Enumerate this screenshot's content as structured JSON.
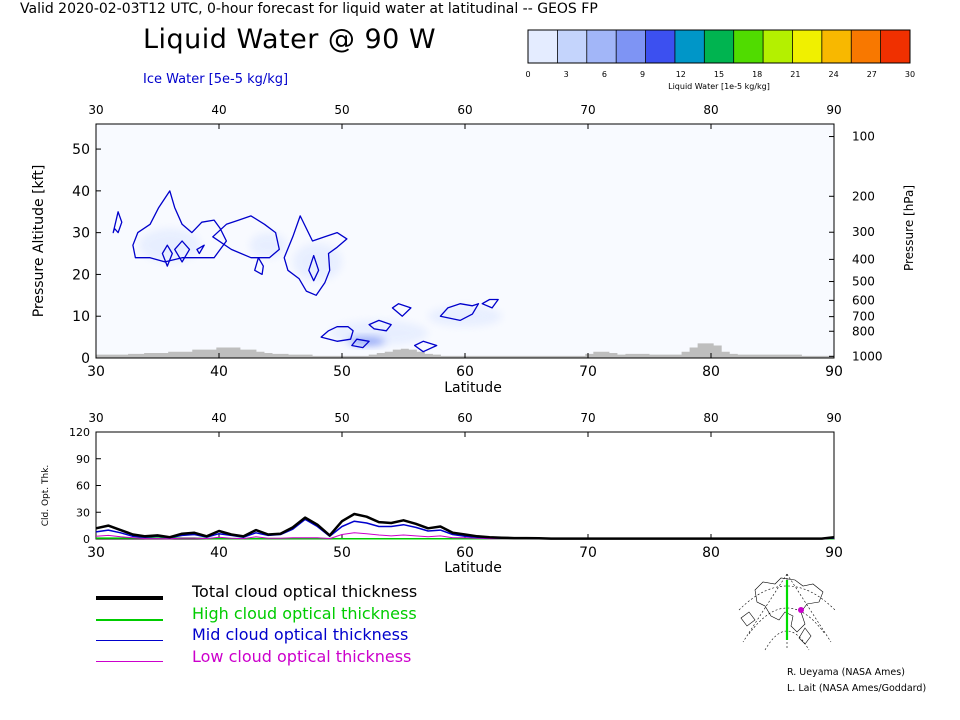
{
  "header": "Valid 2020-02-03T12 UTC, 0-hour forecast for liquid water at latitudinal -- GEOS FP",
  "title": "Liquid Water @ 90 W",
  "subtitle": "Ice Water [5e-5 kg/kg]",
  "colorbar": {
    "label": "Liquid Water [1e-5 kg/kg]",
    "ticks": [
      "0",
      "3",
      "6",
      "9",
      "12",
      "15",
      "18",
      "21",
      "24",
      "27",
      "30"
    ],
    "colors": [
      "#e4ecff",
      "#c4d4fc",
      "#a2b6f8",
      "#7e94f4",
      "#3c50f0",
      "#0096c8",
      "#00b450",
      "#50dc00",
      "#b4f000",
      "#f0f000",
      "#f8b800",
      "#f87800",
      "#f03000"
    ]
  },
  "credits": [
    "R. Ueyama (NASA Ames)",
    "L. Lait (NASA Ames/Goddard)"
  ],
  "legend": [
    {
      "label": "Total cloud optical thickness",
      "color": "#000000"
    },
    {
      "label": "High cloud optical thickness",
      "color": "#00cc00"
    },
    {
      "label": "Mid cloud optical thickness",
      "color": "#0000cc"
    },
    {
      "label": "Low cloud optical thickness",
      "color": "#cc00cc"
    }
  ],
  "chart_data": [
    {
      "type": "heatmap",
      "title": "Liquid Water @ 90 W",
      "xlabel": "Latitude",
      "ylabel": "Pressure Altitude [kft]",
      "ylabel_right": "Pressure [hPa]",
      "xlim": [
        30,
        90
      ],
      "ylim": [
        0,
        56
      ],
      "xticks": [
        30,
        40,
        50,
        60,
        70,
        80,
        90
      ],
      "yticks": [
        0,
        10,
        20,
        30,
        40,
        50
      ],
      "pressure_ticks": [
        {
          "label": "100",
          "kft": 53.0
        },
        {
          "label": "200",
          "kft": 38.7
        },
        {
          "label": "300",
          "kft": 30.1
        },
        {
          "label": "400",
          "kft": 23.6
        },
        {
          "label": "500",
          "kft": 18.3
        },
        {
          "label": "600",
          "kft": 13.8
        },
        {
          "label": "700",
          "kft": 9.9
        },
        {
          "label": "800",
          "kft": 6.4
        },
        {
          "label": "1000",
          "kft": 0.4
        }
      ],
      "liquid_water_patches": [
        {
          "lat": 36.0,
          "kft": 27.0,
          "w": 5.0,
          "h": 8.0,
          "value": 1.5
        },
        {
          "lat": 44.0,
          "kft": 27.0,
          "w": 3.0,
          "h": 6.0,
          "value": 1.0
        },
        {
          "lat": 48.0,
          "kft": 23.0,
          "w": 4.0,
          "h": 9.0,
          "value": 1.5
        },
        {
          "lat": 53.0,
          "kft": 6.0,
          "w": 8.0,
          "h": 6.0,
          "value": 2.0
        },
        {
          "lat": 60.0,
          "kft": 10.0,
          "w": 6.0,
          "h": 5.0,
          "value": 1.0
        },
        {
          "lat": 52.0,
          "kft": 4.0,
          "w": 3.0,
          "h": 2.0,
          "value": 9.0
        }
      ],
      "ice_water_contours": [
        [
          [
            31.4,
            30
          ],
          [
            31.8,
            35
          ],
          [
            32.1,
            32.5
          ],
          [
            31.8,
            30
          ],
          [
            31.5,
            31
          ],
          [
            31.4,
            30
          ]
        ],
        [
          [
            33.0,
            27
          ],
          [
            33.4,
            30
          ],
          [
            34.4,
            32
          ],
          [
            35.1,
            36
          ],
          [
            36.0,
            40
          ],
          [
            36.4,
            36
          ],
          [
            37.0,
            32
          ],
          [
            37.8,
            30
          ],
          [
            38.6,
            32.5
          ],
          [
            39.6,
            33
          ],
          [
            40.1,
            31
          ],
          [
            40.6,
            28
          ],
          [
            39.6,
            24
          ],
          [
            38.4,
            24
          ],
          [
            37.0,
            24
          ],
          [
            35.6,
            23
          ],
          [
            34.4,
            24
          ],
          [
            33.2,
            24
          ],
          [
            33.0,
            27
          ]
        ],
        [
          [
            35.4,
            25
          ],
          [
            35.8,
            27
          ],
          [
            36.2,
            25
          ],
          [
            35.8,
            22
          ],
          [
            35.4,
            25
          ]
        ],
        [
          [
            36.4,
            26
          ],
          [
            37.0,
            28
          ],
          [
            37.6,
            26
          ],
          [
            37.0,
            23
          ],
          [
            36.4,
            26
          ]
        ],
        [
          [
            38.2,
            26
          ],
          [
            38.8,
            27
          ],
          [
            38.4,
            25
          ],
          [
            38.2,
            26
          ]
        ],
        [
          [
            39.5,
            29
          ],
          [
            40.6,
            32
          ],
          [
            41.6,
            33
          ],
          [
            42.6,
            34
          ],
          [
            43.7,
            32
          ],
          [
            44.6,
            30
          ],
          [
            44.9,
            26
          ],
          [
            44.1,
            24
          ],
          [
            42.6,
            24
          ],
          [
            41.0,
            26
          ],
          [
            39.5,
            29
          ]
        ],
        [
          [
            42.9,
            21
          ],
          [
            43.2,
            24
          ],
          [
            43.6,
            22
          ],
          [
            43.5,
            20
          ],
          [
            42.9,
            21
          ]
        ],
        [
          [
            46.0,
            29
          ],
          [
            46.6,
            34
          ],
          [
            47.6,
            28
          ],
          [
            48.6,
            29
          ],
          [
            49.6,
            30
          ],
          [
            50.4,
            28.5
          ],
          [
            49.6,
            26.5
          ],
          [
            48.9,
            25
          ],
          [
            49.0,
            21
          ],
          [
            48.6,
            18
          ],
          [
            47.9,
            15
          ],
          [
            47.1,
            16
          ],
          [
            46.5,
            19
          ],
          [
            45.6,
            21
          ],
          [
            45.3,
            24
          ],
          [
            46.0,
            29
          ]
        ],
        [
          [
            47.3,
            21
          ],
          [
            47.7,
            24.5
          ],
          [
            48.1,
            21
          ],
          [
            47.7,
            18.5
          ],
          [
            47.3,
            21
          ]
        ],
        [
          [
            48.3,
            5
          ],
          [
            48.9,
            6.5
          ],
          [
            49.6,
            7.5
          ],
          [
            50.5,
            7.5
          ],
          [
            50.9,
            6.5
          ],
          [
            50.7,
            4.5
          ],
          [
            49.6,
            4
          ],
          [
            48.3,
            5
          ]
        ],
        [
          [
            50.8,
            3
          ],
          [
            51.2,
            4.5
          ],
          [
            52.2,
            4
          ],
          [
            51.7,
            2.5
          ],
          [
            50.8,
            3
          ]
        ],
        [
          [
            52.2,
            8
          ],
          [
            53.0,
            9
          ],
          [
            54.0,
            8
          ],
          [
            53.6,
            6.5
          ],
          [
            52.6,
            7
          ],
          [
            52.2,
            8
          ]
        ],
        [
          [
            54.1,
            12
          ],
          [
            54.6,
            13
          ],
          [
            55.6,
            12
          ],
          [
            54.9,
            10
          ],
          [
            54.1,
            12
          ]
        ],
        [
          [
            55.9,
            3
          ],
          [
            56.6,
            4
          ],
          [
            57.7,
            3
          ],
          [
            56.6,
            1.5
          ],
          [
            55.9,
            3
          ]
        ],
        [
          [
            58.0,
            10
          ],
          [
            58.6,
            12
          ],
          [
            59.6,
            13
          ],
          [
            60.6,
            12.5
          ],
          [
            61.1,
            13
          ],
          [
            60.6,
            10.5
          ],
          [
            59.6,
            9
          ],
          [
            58.0,
            10
          ]
        ],
        [
          [
            61.4,
            13
          ],
          [
            62.0,
            14
          ],
          [
            62.7,
            14
          ],
          [
            62.2,
            12
          ],
          [
            61.4,
            13
          ]
        ]
      ],
      "terrain_kft": [
        0.8,
        0.8,
        0.8,
        0.8,
        1.0,
        1.0,
        1.2,
        1.2,
        1.2,
        1.5,
        1.5,
        1.5,
        2.0,
        2.0,
        2.0,
        2.5,
        2.5,
        2.5,
        2.0,
        2.0,
        1.5,
        1.2,
        1.0,
        1.0,
        0.8,
        0.8,
        0.8,
        0.5,
        0.5,
        0.5,
        0.5,
        0.5,
        0.5,
        0.5,
        0.8,
        1.2,
        1.5,
        2.0,
        2.2,
        2.0,
        1.5,
        1.0,
        0.8,
        0.5,
        0.5,
        0.5,
        0.5,
        0.5,
        0.5,
        0.5,
        0.5,
        0.5,
        0.5,
        0.5,
        0.5,
        0.5,
        0.5,
        0.5,
        0.5,
        0.5,
        0.5,
        1.0,
        1.5,
        1.5,
        1.2,
        0.8,
        1.0,
        1.0,
        1.0,
        0.8,
        0.8,
        0.8,
        0.8,
        1.5,
        2.5,
        3.5,
        3.5,
        3.0,
        1.5,
        1.0,
        0.8,
        0.8,
        0.8,
        0.8,
        0.8,
        0.8,
        0.8,
        0.8,
        0.5,
        0.5,
        0.5,
        0.5
      ]
    },
    {
      "type": "line",
      "xlabel": "Latitude",
      "ylabel": "Cld. Opt. Thk.",
      "xlim": [
        30,
        90
      ],
      "ylim": [
        0,
        120
      ],
      "xticks": [
        30,
        40,
        50,
        60,
        70,
        80,
        90
      ],
      "yticks": [
        0,
        30,
        60,
        90,
        120
      ],
      "x": [
        30,
        31,
        32,
        33,
        34,
        35,
        36,
        37,
        38,
        39,
        40,
        41,
        42,
        43,
        44,
        45,
        46,
        47,
        48,
        49,
        50,
        51,
        52,
        53,
        54,
        55,
        56,
        57,
        58,
        59,
        60,
        61,
        62,
        63,
        64,
        65,
        66,
        67,
        68,
        69,
        70,
        71,
        72,
        73,
        74,
        75,
        76,
        77,
        78,
        79,
        80,
        81,
        82,
        83,
        84,
        85,
        86,
        87,
        88,
        89,
        90
      ],
      "series": [
        {
          "name": "Total cloud optical thickness",
          "values": [
            12,
            15,
            10,
            5,
            3,
            4,
            2,
            6,
            7,
            3,
            9,
            5,
            3,
            10,
            5,
            6,
            13,
            24,
            16,
            4,
            20,
            28,
            25,
            19,
            18,
            21,
            17,
            12,
            14,
            7,
            5,
            3,
            2,
            1.5,
            1,
            1,
            0.8,
            0.5,
            0.5,
            0.5,
            0.5,
            0.5,
            0.5,
            0.5,
            0.5,
            0.5,
            0.5,
            0.5,
            0.5,
            0.5,
            0.5,
            0.5,
            0.5,
            0.5,
            0.5,
            0.5,
            0.5,
            0.5,
            0.5,
            0.5,
            2
          ]
        },
        {
          "name": "High cloud optical thickness",
          "values": [
            1,
            1,
            1,
            1,
            1,
            1,
            1,
            1,
            1,
            0.5,
            0.5,
            0.5,
            0.5,
            0.5,
            0.5,
            0.5,
            0.5,
            0.5,
            0.5,
            0.5,
            0.3,
            0.3,
            0.3,
            0.3,
            0.3,
            0.3,
            0.3,
            0.3,
            0.3,
            0.3,
            0.3,
            0.2,
            0.2,
            0.2,
            0.2,
            0.2,
            0.2,
            0.2,
            0.2,
            0.2,
            0.2,
            0.2,
            0.2,
            0.2,
            0.2,
            0.2,
            0.2,
            0.2,
            0.2,
            0.2,
            0.2,
            0.2,
            0.2,
            0.2,
            0.2,
            0.2,
            0.2,
            0.2,
            0.2,
            0.2,
            0.2
          ]
        },
        {
          "name": "Mid cloud optical thickness",
          "values": [
            8,
            10,
            7,
            3,
            2,
            3,
            1.5,
            4,
            5,
            2,
            6,
            4,
            2,
            7,
            4,
            5,
            11,
            22,
            14,
            3,
            14,
            20,
            18,
            14,
            14,
            16,
            13,
            9,
            10,
            5,
            3,
            2,
            1.5,
            1,
            0.8,
            0.8,
            0.6,
            0.4,
            0.4,
            0.4,
            0.4,
            0.4,
            0.4,
            0.4,
            0.4,
            0.4,
            0.4,
            0.4,
            0.4,
            0.4,
            0.4,
            0.4,
            0.4,
            0.4,
            0.4,
            0.4,
            0.4,
            0.4,
            0.4,
            0.4,
            1
          ]
        },
        {
          "name": "Low cloud optical thickness",
          "values": [
            3,
            4,
            2.5,
            1.5,
            0.5,
            0.5,
            0.3,
            1,
            1,
            0.5,
            2,
            0.8,
            0.5,
            2.5,
            0.8,
            0.8,
            1.5,
            1.5,
            1.5,
            0.5,
            5,
            7,
            6,
            4.5,
            3.5,
            4.5,
            3.5,
            2.5,
            3.5,
            1.5,
            1.5,
            0.8,
            0.3,
            0.3,
            0.2,
            0.2,
            0.2,
            0.1,
            0.1,
            0.1,
            0.1,
            0.1,
            0.1,
            0.1,
            0.1,
            0.1,
            0.1,
            0.1,
            0.1,
            0.1,
            0.1,
            0.1,
            0.1,
            0.1,
            0.1,
            0.1,
            0.1,
            0.1,
            0.1,
            0.1,
            1
          ]
        }
      ]
    }
  ]
}
